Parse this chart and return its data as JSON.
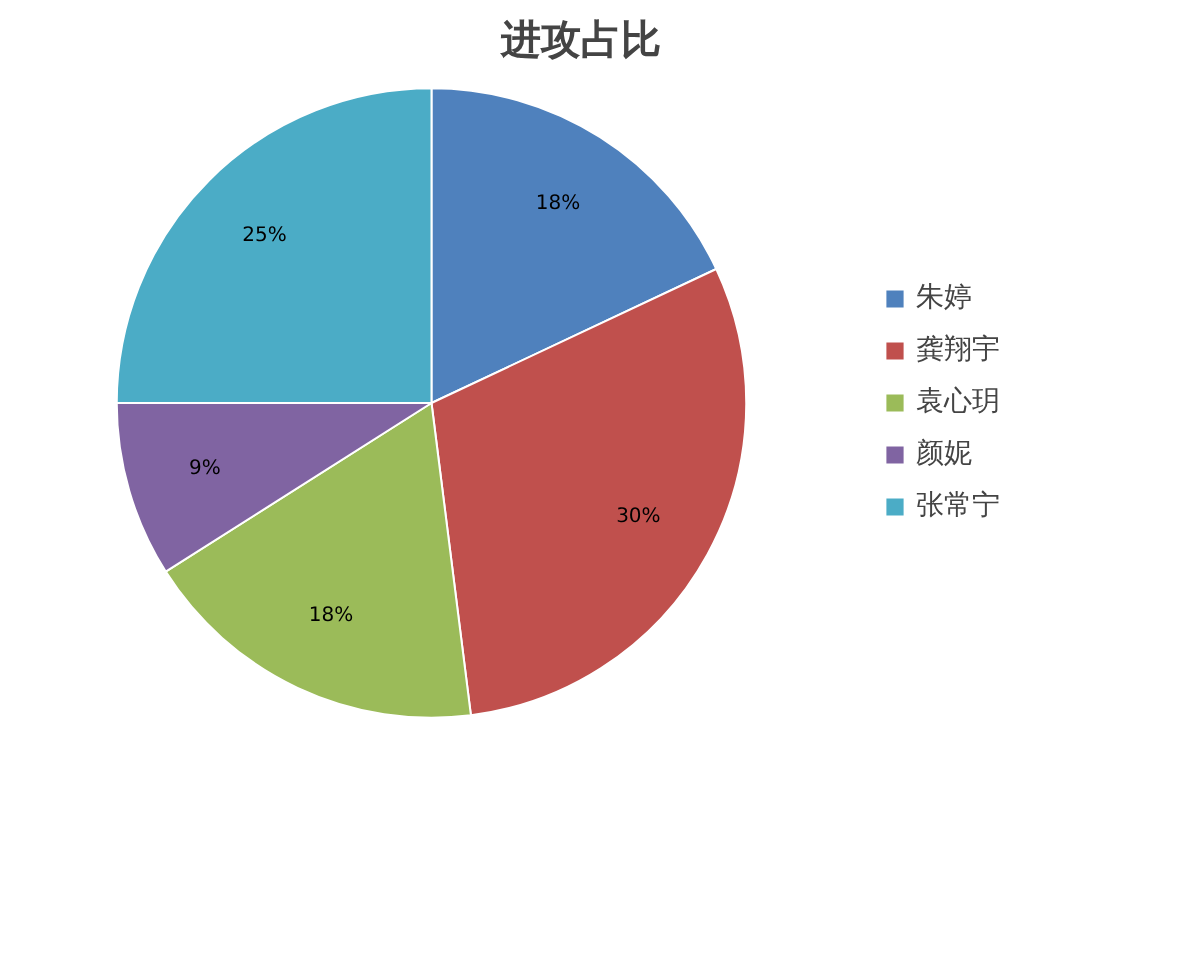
{
  "chart_data": {
    "type": "pie",
    "title": "进攻占比",
    "categories": [
      "朱婷",
      "龚翔宇",
      "袁心玥",
      "颜妮",
      "张常宁"
    ],
    "values": [
      18,
      30,
      18,
      9,
      25
    ],
    "value_labels": [
      "18%",
      "30%",
      "18%",
      "9%",
      "25%"
    ],
    "colors": [
      "#4f81bd",
      "#c0504d",
      "#9bbb59",
      "#8064a2",
      "#4bacc6"
    ],
    "legend": "right"
  }
}
